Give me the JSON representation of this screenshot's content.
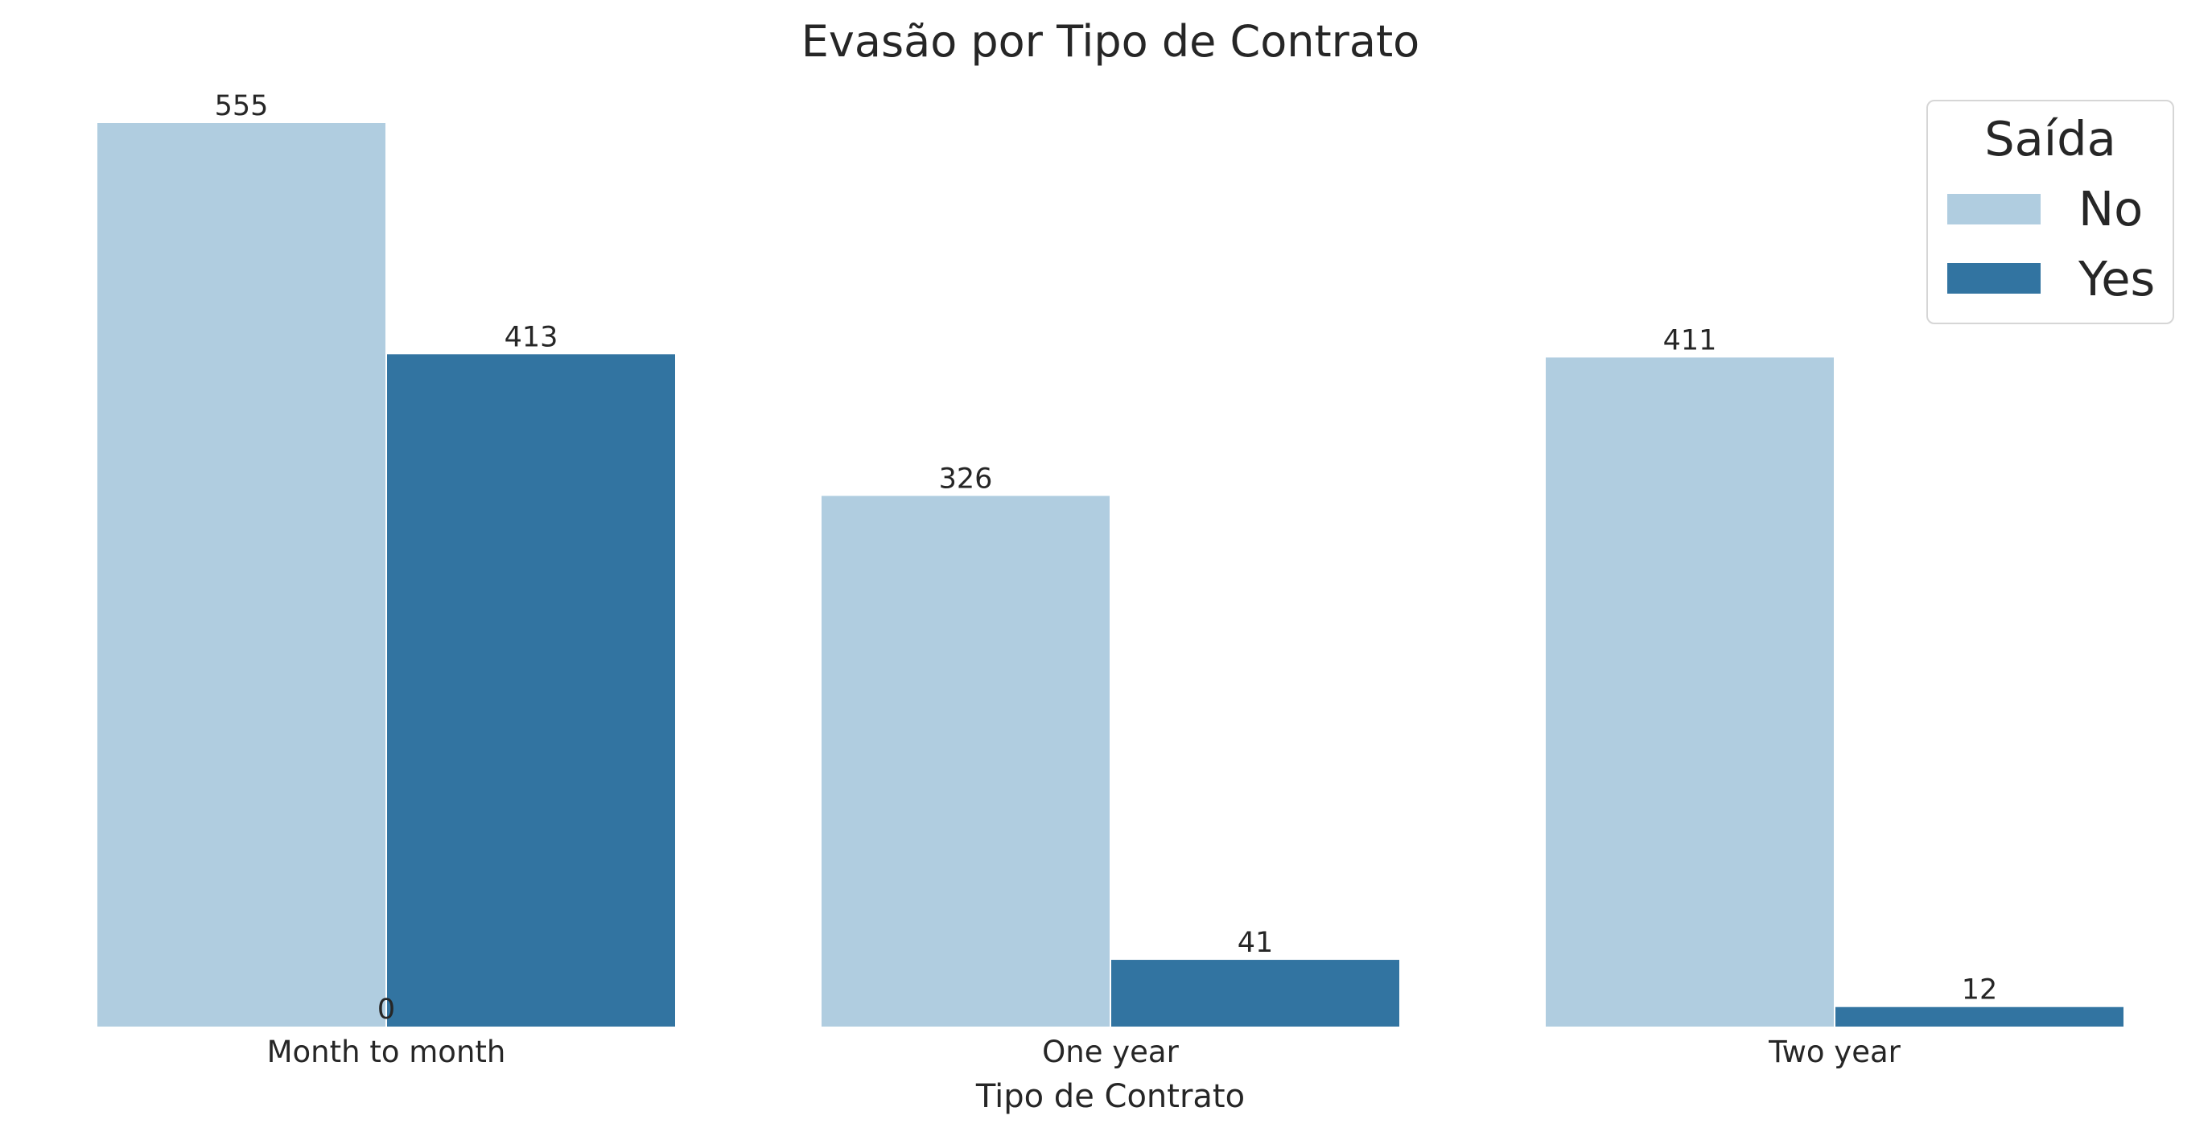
{
  "chart_data": {
    "type": "bar",
    "title": "Evasão por Tipo de Contrato",
    "xlabel": "Tipo de Contrato",
    "ylabel": "",
    "categories": [
      "Month to month",
      "One year",
      "Two year"
    ],
    "series": [
      {
        "name": "No",
        "values": [
          555,
          326,
          411
        ],
        "color": "#b0cde0"
      },
      {
        "name": "Yes",
        "values": [
          413,
          41,
          12
        ],
        "color": "#3274a1"
      }
    ],
    "extra_labels": [
      {
        "category": "Month to month",
        "text": "0"
      }
    ],
    "ylim": [
      0,
      580
    ],
    "legend": {
      "title": "Saída",
      "placement": "top-right"
    },
    "grid": false
  }
}
